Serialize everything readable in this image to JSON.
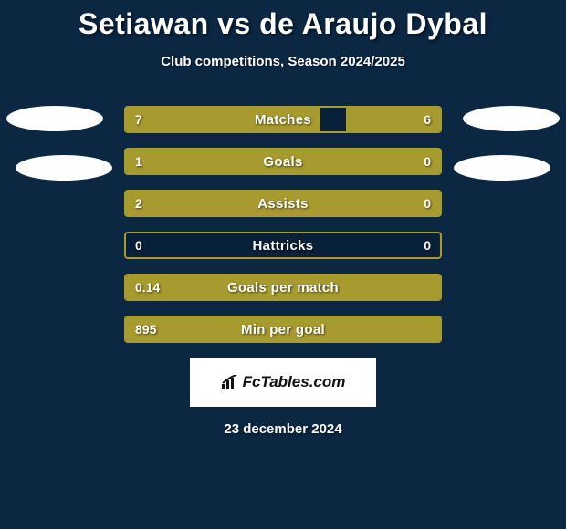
{
  "title": "Setiawan vs de Araujo Dybal",
  "subtitle": "Club competitions, Season 2024/2025",
  "date": "23 december 2024",
  "logo_text": "FcTables.com",
  "background_color": "#0b2742",
  "bar_color": "#a79a2f",
  "border_color": "#a79a2f",
  "text_color": "#ffffff",
  "stats": [
    {
      "label": "Matches",
      "left_value": "7",
      "right_value": "6",
      "left_pct": 62,
      "right_pct": 30
    },
    {
      "label": "Goals",
      "left_value": "1",
      "right_value": "0",
      "left_pct": 76,
      "right_pct": 24
    },
    {
      "label": "Assists",
      "left_value": "2",
      "right_value": "0",
      "left_pct": 76,
      "right_pct": 24
    },
    {
      "label": "Hattricks",
      "left_value": "0",
      "right_value": "0",
      "left_pct": 0,
      "right_pct": 0
    },
    {
      "label": "Goals per match",
      "left_value": "0.14",
      "right_value": "",
      "left_pct": 100,
      "right_pct": 0
    },
    {
      "label": "Min per goal",
      "left_value": "895",
      "right_value": "",
      "left_pct": 100,
      "right_pct": 0
    }
  ]
}
